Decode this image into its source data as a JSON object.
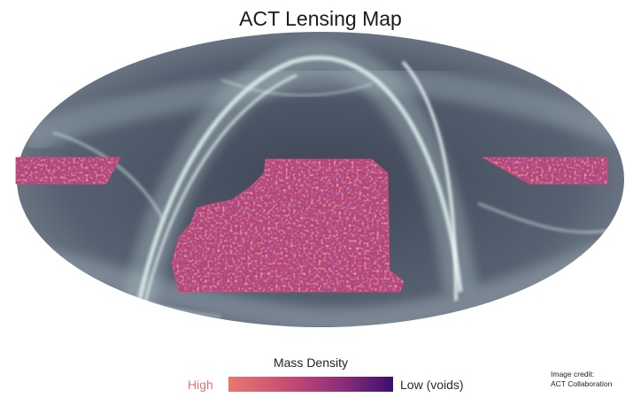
{
  "title": "ACT Lensing Map",
  "colorbar": {
    "title": "Mass Density",
    "high_label": "High",
    "low_label": "Low (voids)",
    "colors": [
      "#e8796e",
      "#c94d73",
      "#8a2d7a",
      "#3b0f6f"
    ]
  },
  "credit": {
    "line1": "Image credit:",
    "line2": "ACT Collaboration"
  },
  "map": {
    "projection": "Mollweide",
    "sky_color": "#4b5463",
    "dust_color": "#cfe4e2",
    "patch_colors": [
      "#e8796e",
      "#d75f72",
      "#b8436f",
      "#8a2d7a",
      "#5e1a6e"
    ]
  }
}
